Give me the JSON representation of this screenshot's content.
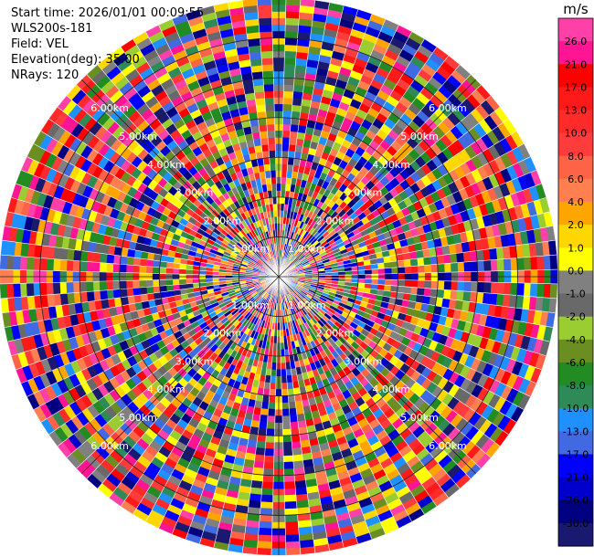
{
  "header": {
    "lines": [
      "Start time: 2026/01/01 00:09:55",
      "WLS200s-181",
      "Field: VEL",
      "Elevation(deg): 35.00",
      "NRays: 120"
    ]
  },
  "chart_data": {
    "type": "heatmap",
    "projection": "polar-ppi",
    "title": "",
    "field": "VEL",
    "units": "m/s",
    "nrays": 120,
    "max_range_km": 7.0,
    "gates_per_ray": 42,
    "range_rings_km": [
      1,
      2,
      3,
      4,
      5,
      6
    ],
    "range_ring_labels": [
      "1.00km",
      "2.00km",
      "3.00km",
      "4.00km",
      "5.00km",
      "6.00km"
    ],
    "spokes_deg": [
      0,
      45,
      90,
      135,
      180,
      225,
      270,
      315
    ],
    "colorbar": {
      "unit": "m/s",
      "ticks": [
        "26.0",
        "21.0",
        "17.0",
        "13.0",
        "10.0",
        "8.0",
        "6.0",
        "4.0",
        "2.0",
        "1.0",
        "0.0",
        "-1.0",
        "-2.0",
        "-4.0",
        "-6.0",
        "-8.0",
        "-10.0",
        "-13.0",
        "-17.0",
        "-21.0",
        "-26.0",
        "-30.0"
      ],
      "colors": [
        "#ff40a8",
        "#ff1493",
        "#ff0000",
        "#ff1a1a",
        "#ff2a2a",
        "#ff3c3c",
        "#ff6347",
        "#ff7f50",
        "#ffa500",
        "#ffd700",
        "#ffff00",
        "#808080",
        "#696969",
        "#9acd32",
        "#6b8e23",
        "#228b22",
        "#2e8b57",
        "#1e90ff",
        "#4169e1",
        "#0000ff",
        "#0000cd",
        "#000080",
        "#191970"
      ]
    },
    "field_note": "values are random noise across all gates (no coherent wind structure)"
  }
}
